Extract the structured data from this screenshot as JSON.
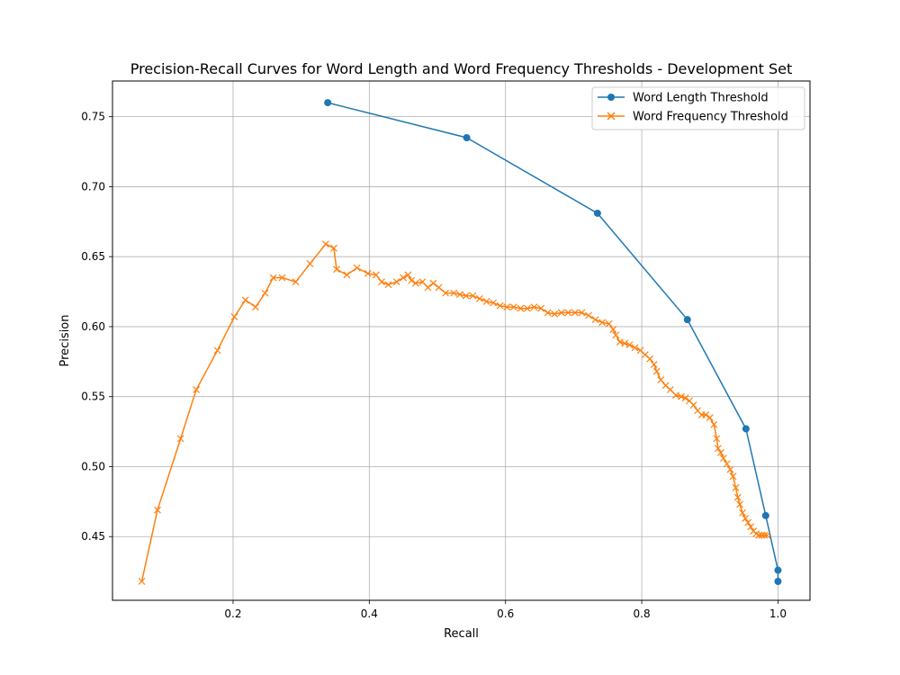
{
  "chart_data": {
    "type": "line",
    "title": "Precision-Recall Curves for Word Length and Word Frequency Thresholds - Development Set",
    "xlabel": "Recall",
    "ylabel": "Precision",
    "xlim": [
      0.023,
      1.047
    ],
    "ylim": [
      0.4045,
      0.7755
    ],
    "xticks": [
      0.2,
      0.4,
      0.6,
      0.8,
      1.0
    ],
    "xtick_labels": [
      "0.2",
      "0.4",
      "0.6",
      "0.8",
      "1.0"
    ],
    "yticks": [
      0.45,
      0.5,
      0.55,
      0.6,
      0.65,
      0.7,
      0.75
    ],
    "ytick_labels": [
      "0.45",
      "0.50",
      "0.55",
      "0.60",
      "0.65",
      "0.70",
      "0.75"
    ],
    "grid": true,
    "legend_position": "upper right",
    "series": [
      {
        "name": "Word Length Threshold",
        "color": "#1f77b4",
        "marker": "circle",
        "x": [
          0.339,
          0.543,
          0.735,
          0.867,
          0.953,
          0.982,
          1.0,
          1.0
        ],
        "y": [
          0.76,
          0.735,
          0.681,
          0.605,
          0.527,
          0.465,
          0.426,
          0.418
        ]
      },
      {
        "name": "Word Frequency Threshold",
        "color": "#ff7f0e",
        "marker": "x",
        "x": [
          0.066,
          0.089,
          0.123,
          0.146,
          0.177,
          0.202,
          0.218,
          0.233,
          0.247,
          0.259,
          0.272,
          0.292,
          0.313,
          0.336,
          0.348,
          0.352,
          0.367,
          0.382,
          0.398,
          0.41,
          0.418,
          0.428,
          0.44,
          0.45,
          0.457,
          0.462,
          0.468,
          0.478,
          0.486,
          0.494,
          0.502,
          0.512,
          0.524,
          0.533,
          0.542,
          0.552,
          0.562,
          0.572,
          0.582,
          0.592,
          0.602,
          0.612,
          0.622,
          0.632,
          0.642,
          0.652,
          0.662,
          0.672,
          0.682,
          0.692,
          0.702,
          0.712,
          0.722,
          0.732,
          0.742,
          0.752,
          0.758,
          0.762,
          0.768,
          0.775,
          0.782,
          0.79,
          0.798,
          0.805,
          0.812,
          0.818,
          0.822,
          0.828,
          0.835,
          0.842,
          0.85,
          0.858,
          0.864,
          0.87,
          0.876,
          0.882,
          0.888,
          0.894,
          0.9,
          0.906,
          0.91,
          0.912,
          0.916,
          0.92,
          0.925,
          0.93,
          0.934,
          0.938,
          0.941,
          0.944,
          0.948,
          0.952,
          0.956,
          0.96,
          0.964,
          0.968,
          0.972,
          0.976,
          0.98,
          0.984
        ],
        "y": [
          0.418,
          0.469,
          0.52,
          0.555,
          0.583,
          0.607,
          0.619,
          0.614,
          0.624,
          0.635,
          0.635,
          0.632,
          0.645,
          0.659,
          0.656,
          0.641,
          0.637,
          0.642,
          0.638,
          0.637,
          0.632,
          0.63,
          0.632,
          0.635,
          0.637,
          0.633,
          0.631,
          0.632,
          0.628,
          0.631,
          0.628,
          0.624,
          0.624,
          0.623,
          0.622,
          0.622,
          0.62,
          0.618,
          0.617,
          0.615,
          0.614,
          0.614,
          0.613,
          0.613,
          0.614,
          0.613,
          0.61,
          0.609,
          0.61,
          0.61,
          0.61,
          0.61,
          0.608,
          0.605,
          0.603,
          0.602,
          0.598,
          0.594,
          0.589,
          0.588,
          0.587,
          0.585,
          0.583,
          0.58,
          0.577,
          0.573,
          0.568,
          0.562,
          0.558,
          0.555,
          0.551,
          0.55,
          0.549,
          0.547,
          0.544,
          0.54,
          0.537,
          0.537,
          0.535,
          0.53,
          0.52,
          0.513,
          0.51,
          0.506,
          0.502,
          0.498,
          0.493,
          0.485,
          0.478,
          0.473,
          0.467,
          0.463,
          0.46,
          0.457,
          0.454,
          0.452,
          0.451,
          0.451,
          0.451,
          0.451
        ]
      }
    ]
  }
}
